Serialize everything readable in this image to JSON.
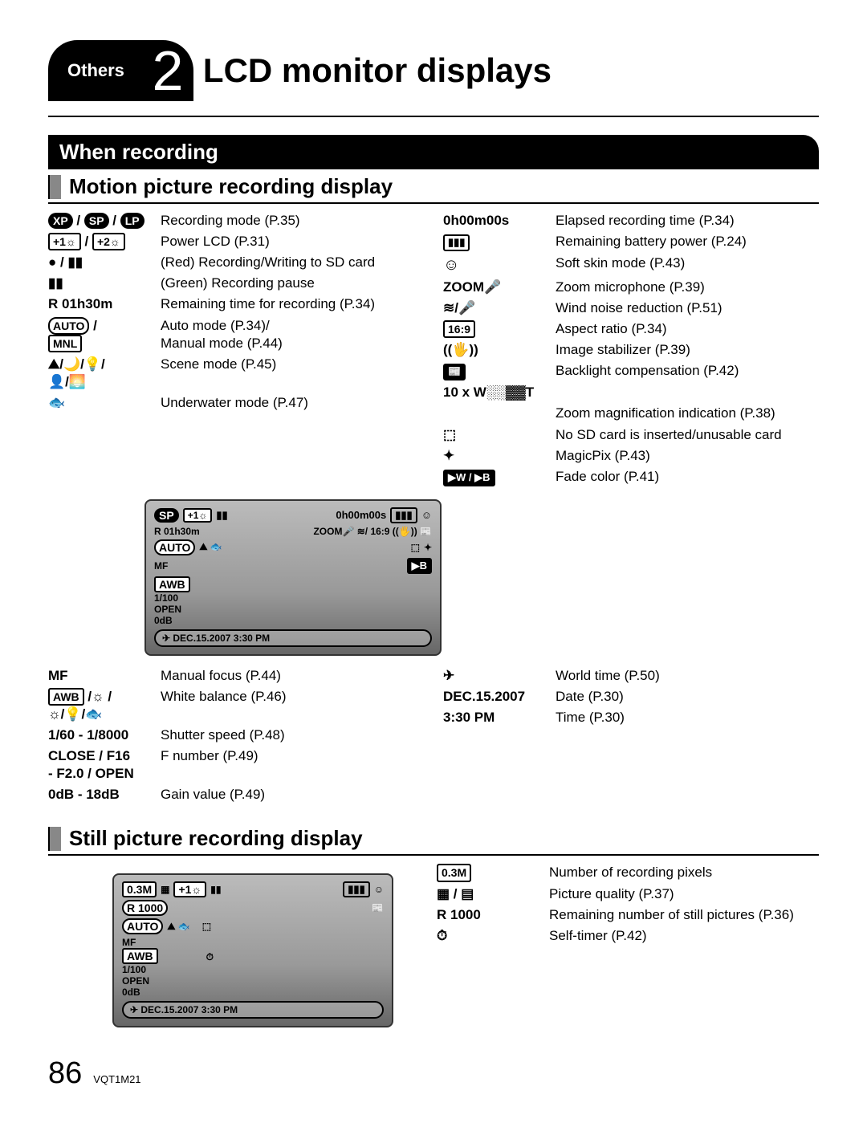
{
  "header": {
    "tab": "Others",
    "num": "2",
    "title": "LCD monitor displays"
  },
  "section1": "When recording",
  "sub1": "Motion picture recording display",
  "left": [
    {
      "icon": "XP / SP / LP",
      "style": "pill3",
      "desc": "Recording mode (P.35)"
    },
    {
      "icon": "+1☼ / +2☼",
      "style": "boxed2",
      "desc": "Power LCD (P.31)"
    },
    {
      "icon": "● / ▮▮",
      "style": "sym",
      "desc": "(Red) Recording/Writing to SD card"
    },
    {
      "icon": "▮▮",
      "style": "sym",
      "desc": "(Green) Recording pause"
    },
    {
      "icon": "R  01h30m",
      "style": "bold",
      "desc": "Remaining time for recording (P.34)"
    },
    {
      "icon": "AUTO / MNL",
      "style": "automnl",
      "desc": "Auto mode (P.34)/\nManual mode (P.44)"
    },
    {
      "icon": "⛰/🌙/💡/👤/🌅",
      "style": "scene",
      "desc": "Scene mode (P.45)"
    },
    {
      "icon": "🐟",
      "style": "sym",
      "desc": "Underwater mode (P.47)"
    }
  ],
  "rightTop": {
    "icon": "0h00m00s",
    "desc": "Elapsed recording time (P.34)"
  },
  "right": [
    {
      "icon": "🔋",
      "style": "batt",
      "desc": "Remaining battery power (P.24)"
    },
    {
      "icon": "☺",
      "style": "circ",
      "desc": "Soft skin mode (P.43)"
    },
    {
      "icon": "ZOOM🎤",
      "style": "bold",
      "desc": "Zoom microphone (P.39)"
    },
    {
      "icon": "≋/🎤",
      "style": "sym",
      "desc": "Wind noise reduction (P.51)"
    },
    {
      "icon": "16:9",
      "style": "boxed",
      "desc": "Aspect ratio (P.34)"
    },
    {
      "icon": "((🖐))",
      "style": "sym",
      "desc": "Image stabilizer (P.39)"
    },
    {
      "icon": "📰",
      "style": "inv",
      "desc": "Backlight compensation (P.42)"
    }
  ],
  "zoom": {
    "icon": "10 x W▭━━T",
    "desc": "Zoom magnification indication (P.38)"
  },
  "right2": [
    {
      "icon": "⬚",
      "style": "sym",
      "desc": "No SD card is inserted/unusable card"
    },
    {
      "icon": "✦",
      "style": "sym",
      "desc": "MagicPix (P.43)"
    },
    {
      "icon": "▶W / ▶B",
      "style": "inv",
      "desc": "Fade color (P.41)"
    },
    {
      "icon": "✈",
      "style": "sym",
      "desc": "World time (P.50)"
    }
  ],
  "dateBlock": {
    "date": "DEC.15.2007",
    "dateDesc": "Date (P.30)",
    "time": "3:30 PM",
    "timeDesc": "Time (P.30)"
  },
  "left2": [
    {
      "icon": "MF",
      "style": "bold",
      "desc": "Manual focus (P.44)"
    },
    {
      "icon": "AWB /☼/☼/💡/🐟",
      "style": "awb",
      "desc": "White balance (P.46)"
    },
    {
      "icon": "1/60 - 1/8000",
      "style": "bold",
      "desc": "Shutter speed (P.48)"
    },
    {
      "icon": "CLOSE / F16\n- F2.0 / OPEN",
      "style": "bold",
      "desc": "F number (P.49)"
    },
    {
      "icon": "0dB - 18dB",
      "style": "bold",
      "desc": "Gain value (P.49)"
    }
  ],
  "lcd1": {
    "l1": [
      "SP",
      "+1☼",
      "▮▮",
      "0h00m00s",
      "🔋",
      "☺"
    ],
    "l2": [
      "R 01h30m",
      "ZOOM🎤 ≋/ 16:9 ((🖐)) 📰"
    ],
    "l3": [
      "AUTO ⛰ 🐟",
      "⬚",
      "✦"
    ],
    "l4": [
      "MF",
      "▶B"
    ],
    "l5": "AWB",
    "l6": "1/100",
    "l7": "OPEN",
    "l8": "0dB",
    "bottom": "✈ DEC.15.2007   3:30 PM"
  },
  "sub2": "Still picture recording display",
  "stillRight": [
    {
      "icon": "0.3M",
      "style": "boxed",
      "desc": "Number of recording pixels"
    },
    {
      "icon": "▦ / ▤",
      "style": "sym",
      "desc": "Picture quality (P.37)"
    },
    {
      "icon": "R 1000",
      "style": "bold",
      "desc": "Remaining number of still pictures (P.36)"
    },
    {
      "icon": "⏱",
      "style": "sym",
      "desc": "Self-timer (P.42)"
    }
  ],
  "lcd2": {
    "l1": [
      "0.3M",
      "▦",
      "+1☼",
      "▮▮",
      "🔋",
      "☺"
    ],
    "l2": [
      "R 1000",
      "📰"
    ],
    "l3": [
      "AUTO ⛰ 🐟",
      "⬚"
    ],
    "l4": "MF",
    "l5": "AWB",
    "l6": "⏱",
    "l7": "1/100",
    "l8": "OPEN",
    "l9": "0dB",
    "bottom": "✈ DEC.15.2007   3:30 PM"
  },
  "footer": {
    "page": "86",
    "code": "VQT1M21"
  }
}
